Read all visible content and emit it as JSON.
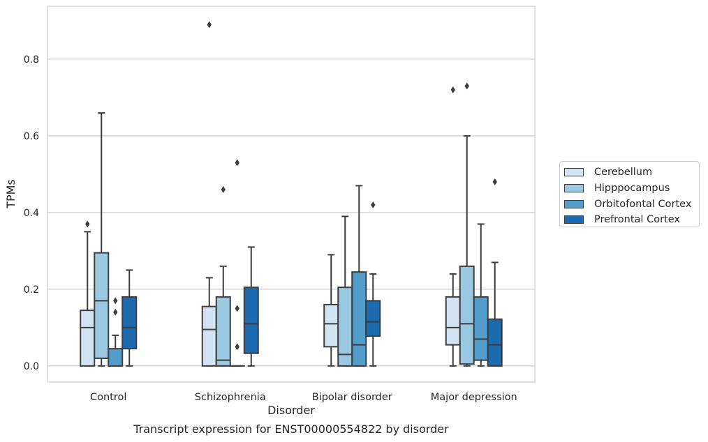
{
  "chart_data": {
    "type": "box",
    "caption": "Transcript expression for ENST00000554822 by disorder",
    "xlabel": "Disorder",
    "ylabel": "TPMs",
    "ylim": [
      -0.042,
      0.938
    ],
    "yticks": [
      0.0,
      0.2,
      0.4,
      0.6,
      0.8
    ],
    "ytick_labels": [
      "0.0",
      "0.2",
      "0.4",
      "0.6",
      "0.8"
    ],
    "grid": "horizontal",
    "legend_position": "right",
    "categories": [
      "Control",
      "Schizophrenia",
      "Bipolar disorder",
      "Major depression"
    ],
    "series": [
      {
        "name": "Cerebellum",
        "color": "#d2e3f3",
        "boxes": [
          {
            "whisker_low": 0.0,
            "q1": 0.0,
            "median": 0.1,
            "q3": 0.145,
            "whisker_high": 0.35,
            "outliers": [
              0.37
            ]
          },
          {
            "whisker_low": 0.0,
            "q1": 0.0,
            "median": 0.095,
            "q3": 0.155,
            "whisker_high": 0.23,
            "outliers": [
              0.89
            ]
          },
          {
            "whisker_low": 0.0,
            "q1": 0.05,
            "median": 0.11,
            "q3": 0.16,
            "whisker_high": 0.29,
            "outliers": []
          },
          {
            "whisker_low": 0.0,
            "q1": 0.055,
            "median": 0.1,
            "q3": 0.18,
            "whisker_high": 0.24,
            "outliers": [
              0.72
            ]
          }
        ]
      },
      {
        "name": "Hipppocampus",
        "color": "#9ac8e0",
        "boxes": [
          {
            "whisker_low": 0.0,
            "q1": 0.02,
            "median": 0.17,
            "q3": 0.295,
            "whisker_high": 0.66,
            "outliers": []
          },
          {
            "whisker_low": 0.0,
            "q1": 0.0,
            "median": 0.015,
            "q3": 0.18,
            "whisker_high": 0.26,
            "outliers": [
              0.46
            ]
          },
          {
            "whisker_low": 0.0,
            "q1": 0.0,
            "median": 0.03,
            "q3": 0.205,
            "whisker_high": 0.39,
            "outliers": []
          },
          {
            "whisker_low": 0.0,
            "q1": 0.005,
            "median": 0.11,
            "q3": 0.26,
            "whisker_high": 0.6,
            "outliers": [
              0.73
            ]
          }
        ]
      },
      {
        "name": "Orbitofontal Cortex",
        "color": "#529dcc",
        "boxes": [
          {
            "whisker_low": 0.0,
            "q1": 0.0,
            "median": 0.0,
            "q3": 0.045,
            "whisker_high": 0.08,
            "outliers": [
              0.14,
              0.17
            ]
          },
          {
            "whisker_low": 0.0,
            "q1": 0.0,
            "median": 0.0,
            "q3": 0.0,
            "whisker_high": 0.0,
            "outliers": [
              0.05,
              0.15,
              0.53
            ]
          },
          {
            "whisker_low": 0.0,
            "q1": 0.0,
            "median": 0.055,
            "q3": 0.245,
            "whisker_high": 0.47,
            "outliers": []
          },
          {
            "whisker_low": 0.0,
            "q1": 0.015,
            "median": 0.07,
            "q3": 0.18,
            "whisker_high": 0.37,
            "outliers": []
          }
        ]
      },
      {
        "name": "Prefrontal Cortex",
        "color": "#1c6aaf",
        "boxes": [
          {
            "whisker_low": 0.0,
            "q1": 0.045,
            "median": 0.1,
            "q3": 0.18,
            "whisker_high": 0.25,
            "outliers": []
          },
          {
            "whisker_low": 0.0,
            "q1": 0.033,
            "median": 0.11,
            "q3": 0.205,
            "whisker_high": 0.31,
            "outliers": []
          },
          {
            "whisker_low": 0.0,
            "q1": 0.078,
            "median": 0.115,
            "q3": 0.17,
            "whisker_high": 0.24,
            "outliers": [
              0.42
            ]
          },
          {
            "whisker_low": 0.0,
            "q1": 0.0,
            "median": 0.055,
            "q3": 0.122,
            "whisker_high": 0.27,
            "outliers": [
              0.48
            ]
          }
        ]
      }
    ]
  }
}
